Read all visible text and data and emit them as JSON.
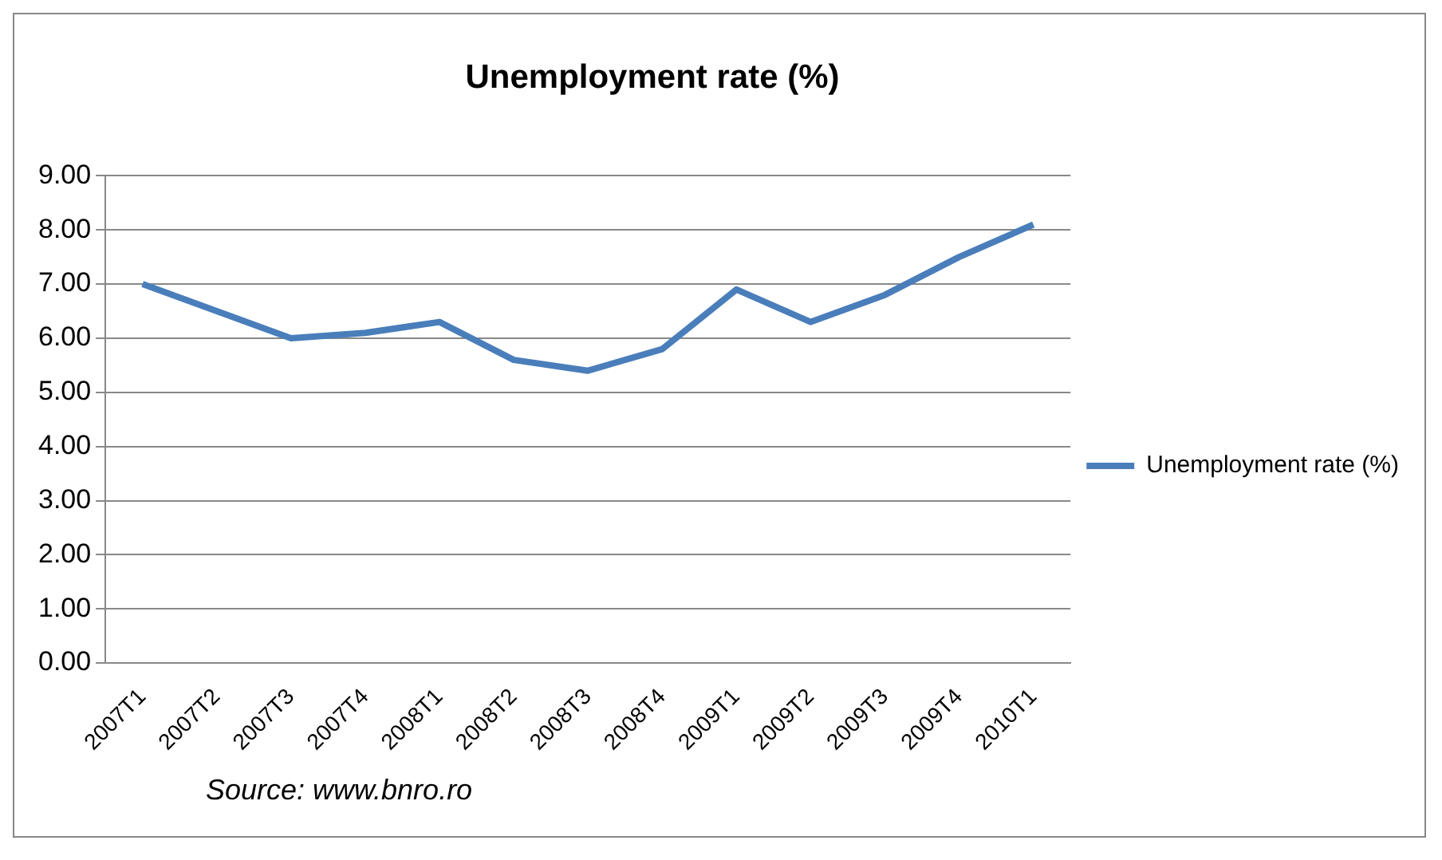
{
  "chart_data": {
    "type": "line",
    "title": "Unemployment rate (%)",
    "categories": [
      "2007T1",
      "2007T2",
      "2007T3",
      "2007T4",
      "2008T1",
      "2008T2",
      "2008T3",
      "2008T4",
      "2009T1",
      "2009T2",
      "2009T3",
      "2009T4",
      "2010T1"
    ],
    "series": [
      {
        "name": "Unemployment rate (%)",
        "color": "#4a7ebb",
        "values": [
          7.0,
          6.5,
          6.0,
          6.1,
          6.3,
          5.6,
          5.4,
          5.8,
          6.9,
          6.3,
          6.8,
          7.5,
          8.1
        ]
      }
    ],
    "ylim": [
      0,
      9
    ],
    "yticks": [
      {
        "value": 0,
        "label": "0.00"
      },
      {
        "value": 1,
        "label": "1.00"
      },
      {
        "value": 2,
        "label": "2.00"
      },
      {
        "value": 3,
        "label": "3.00"
      },
      {
        "value": 4,
        "label": "4.00"
      },
      {
        "value": 5,
        "label": "5.00"
      },
      {
        "value": 6,
        "label": "6.00"
      },
      {
        "value": 7,
        "label": "7.00"
      },
      {
        "value": 8,
        "label": "8.00"
      },
      {
        "value": 9,
        "label": "9.00"
      }
    ],
    "grid": "y",
    "legend": "right",
    "marker": "none",
    "line_style": "solid",
    "annotations": [
      "Source: www.bnro.ro"
    ]
  }
}
